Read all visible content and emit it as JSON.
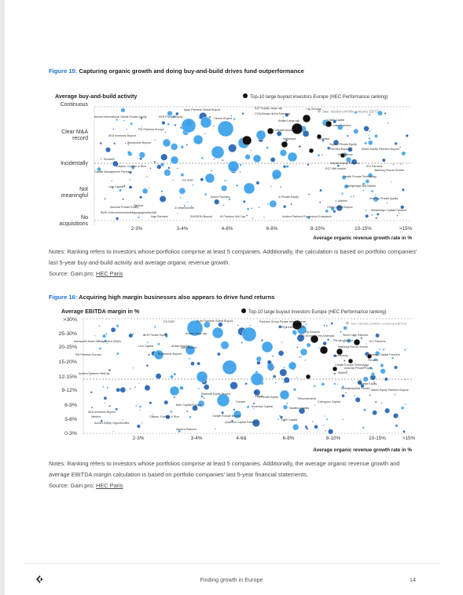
{
  "figure15": {
    "number": "Figure 15:",
    "title": " Capturing organic growth and doing buy-and-build drives fund outperformance",
    "y_title": "Average buy-and-build activity",
    "x_title": "Average organic revenue growth rate in %",
    "legend_top10": "Top-10 large buyout investors Europe (HEC Performance ranking)",
    "legend_size": "Size: Median portfolio company EBITDA",
    "y_categories": [
      "Continuous",
      "Clear M&A record",
      "Incidentally",
      "Not meaningful",
      "No acquisitions"
    ],
    "x_categories": [
      "2-3%",
      "3-4%",
      "4-6%",
      "6-8%",
      "8-10%",
      "10-15%",
      ">15%"
    ],
    "labels": [
      "Apax Partners Global Buyout",
      "EQT Equity Large cap",
      "Hg Genesis",
      "Size: Median portfolio company EBITDA",
      "Advent International Global Private Equity",
      "KKR Private Equity",
      "Cinven Buyout",
      "CVC Europe & the Americas",
      "Castik Capital",
      "Ardian Large cap",
      "Silver Lake Partners",
      "PAI Partners Europe",
      "EQT Infrastructure",
      "AEA Investors Buyout",
      "Norvestor",
      "Waterland",
      "Blackstone Buyout",
      "Sagard Private Equity",
      "Permira Buyout",
      "Martin Equity Partners Buyout",
      "Hg Mercury",
      "Eurazeo",
      "Mayfair Equity Partners",
      "ECI Partners",
      "Clayton, Dubilier & Rice",
      "EQT Mid market",
      "Warburg Pincus Growth",
      "Capital Management Partners",
      "F2i SGR",
      "Carlyle Europe Technology",
      "Lion Capital",
      "Livingbridge Mid Market",
      "Axiom Partners",
      "Alantra",
      "AnaCap Private Equity",
      "3i Private Equity",
      "Nimbus",
      "Ascenta Private Equity",
      "3i Infrastructure",
      "GHO Capital Buyout",
      "Westbridge Capital Partners",
      "BWK Unternehmensbeteiligungsgesellschaft",
      "Inge Partners",
      "INVISION Buyout",
      "IK Partners Mid Cap",
      "Andera Partners Expansion/Croissance"
    ]
  },
  "figure15_notes": {
    "text": "Notes: Ranking refers to investors whose portfolios comprise at least 5 companies. Additionally, the calculation is based on portfolio companies' last 5-year buy-and-build activity and average organic revenue growth.",
    "source_prefix": "Source: Gain.pro; ",
    "source_link": "HEC Paris"
  },
  "figure16": {
    "number": "Figure 16:",
    "title": " Acquiring high margin businesses also appears to drive fund returns",
    "y_title": "Average EBITDA margin in %",
    "x_title": "Average organic revenue growth rate in %",
    "legend_top10": "Top-10 large buyout investors Europe (HEC Performance ranking)",
    "legend_size": "Size: Median portfolio company EBITDA",
    "y_categories": [
      ">30%",
      "25-30%",
      "20-25%",
      "15-20%",
      "12-15%",
      "9-12%",
      "6-9%",
      "3-6%",
      "0-3%"
    ],
    "x_categories": [
      "2-3%",
      "3-4%",
      "4-6&",
      "6-8%",
      "8-10%",
      "10-15%",
      ">15%"
    ],
    "labels": [
      "F2i SGR",
      "Apax Partners Global Buyout",
      "Partners Group Private Infrastructure",
      "3i Infrastructure",
      "Ardian Large cap",
      "EQT Infrastructure",
      "Size: Median portfolio company EBITDA",
      "KKR Private Equity",
      "Ardian Buyout",
      "Hg Genesis",
      "CVC Europe & the Americas",
      "Silver Lake Partners",
      "Macquarie Asset Management (MAA)",
      "Lion Capital",
      "Permira Buyout",
      "ECI Partners",
      "Axim Buyout",
      "Warburg Pincus Growth",
      "PAI Partners Europe",
      "Blackstone Buyout",
      "Hg Mercury",
      "Montagu Capital Partners",
      "Andera Partners MidCap",
      "Perseus",
      "Carlyle Europe Technology",
      "AnaCap Private Equity",
      "Alantra",
      "Suresia Equity",
      "Platinum Equity Buyout",
      "Cinven",
      "Investindustrial Growth",
      "Marlin Equity Partners Buyout",
      "Canvas",
      "3i Private Equity",
      "Tritinvestments",
      "Cairngorm Capital",
      "AEA Investors Buyout",
      "Nimbus",
      "Bain Capital Europe",
      "Axcentus Capital",
      "Nautilus Capital",
      "Auctus Equity Opportunities",
      "Clayton, Dubilier & Rice",
      "Carlyle Europe Buyout",
      "Quantum Capital Partners",
      "DMK Capital",
      "Andera Partners"
    ]
  },
  "figure16_notes": {
    "text": "Notes: Ranking refers to investors whose portfolios comprise at least 5 companies. Additionally, the average organic revenue growth and average EBITDA margin calculation is based on portfolio companies' last 5-year financial statements.",
    "source_prefix": "Source: Gain.pro; ",
    "source_link": "HEC Paris"
  },
  "footer": {
    "logo_icon": "gain-logo-icon",
    "title": "Finding growth in Europe",
    "page_number": "14"
  },
  "colors": {
    "accent": "#1f6fd1",
    "bubble_light": "#3fa2ea",
    "bubble_dark": "#1f5fb0",
    "top10": "#111111",
    "bubble_outline": "#ffffff"
  }
}
